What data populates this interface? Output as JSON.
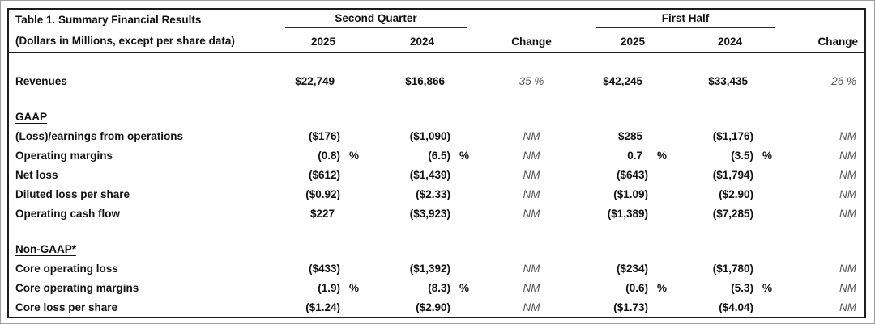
{
  "header": {
    "title": "Table 1. Summary Financial Results",
    "subtitle": "(Dollars in Millions, except per share data)",
    "group_q2": "Second Quarter",
    "group_fh": "First Half",
    "year_2025": "2025",
    "year_2024": "2024",
    "change": "Change"
  },
  "rows": [
    {
      "type": "spacer"
    },
    {
      "type": "data",
      "label": "Revenues",
      "q2_2025": "$22,749",
      "q2_2025_pct": "",
      "q2_2024": "$16,866",
      "q2_2024_pct": "",
      "q2_change": "35 %",
      "fh_2025": "$42,245",
      "fh_2025_pct": "",
      "fh_2024": "$33,435",
      "fh_2024_pct": "",
      "fh_change": "26 %"
    },
    {
      "type": "spacer"
    },
    {
      "type": "section",
      "label": "GAAP"
    },
    {
      "type": "data",
      "label": "(Loss)/earnings from operations",
      "q2_2025": "($176)",
      "q2_2025_pct": "",
      "q2_2024": "($1,090)",
      "q2_2024_pct": "",
      "q2_change": "NM",
      "fh_2025": "$285",
      "fh_2025_pct": "",
      "fh_2024": "($1,176)",
      "fh_2024_pct": "",
      "fh_change": "NM"
    },
    {
      "type": "data",
      "label": "Operating margins",
      "q2_2025": "(0.8)",
      "q2_2025_pct": "%",
      "q2_2024": "(6.5)",
      "q2_2024_pct": "%",
      "q2_change": "NM",
      "fh_2025": "0.7",
      "fh_2025_pct": "%",
      "fh_2024": "(3.5)",
      "fh_2024_pct": "%",
      "fh_change": "NM"
    },
    {
      "type": "data",
      "label": "Net loss",
      "q2_2025": "($612)",
      "q2_2025_pct": "",
      "q2_2024": "($1,439)",
      "q2_2024_pct": "",
      "q2_change": "NM",
      "fh_2025": "($643)",
      "fh_2025_pct": "",
      "fh_2024": "($1,794)",
      "fh_2024_pct": "",
      "fh_change": "NM"
    },
    {
      "type": "data",
      "label": "Diluted loss per share",
      "q2_2025": "($0.92)",
      "q2_2025_pct": "",
      "q2_2024": "($2.33)",
      "q2_2024_pct": "",
      "q2_change": "NM",
      "fh_2025": "($1.09)",
      "fh_2025_pct": "",
      "fh_2024": "($2.90)",
      "fh_2024_pct": "",
      "fh_change": "NM"
    },
    {
      "type": "data",
      "label": "Operating cash flow",
      "q2_2025": "$227",
      "q2_2025_pct": "",
      "q2_2024": "($3,923)",
      "q2_2024_pct": "",
      "q2_change": "NM",
      "fh_2025": "($1,389)",
      "fh_2025_pct": "",
      "fh_2024": "($7,285)",
      "fh_2024_pct": "",
      "fh_change": "NM"
    },
    {
      "type": "spacer"
    },
    {
      "type": "section",
      "label": "Non-GAAP*"
    },
    {
      "type": "data",
      "label": "Core operating loss",
      "q2_2025": "($433)",
      "q2_2025_pct": "",
      "q2_2024": "($1,392)",
      "q2_2024_pct": "",
      "q2_change": "NM",
      "fh_2025": "($234)",
      "fh_2025_pct": "",
      "fh_2024": "($1,780)",
      "fh_2024_pct": "",
      "fh_change": "NM"
    },
    {
      "type": "data",
      "label": "Core operating margins",
      "q2_2025": "(1.9)",
      "q2_2025_pct": "%",
      "q2_2024": "(8.3)",
      "q2_2024_pct": "%",
      "q2_change": "NM",
      "fh_2025": "(0.6)",
      "fh_2025_pct": "%",
      "fh_2024": "(5.3)",
      "fh_2024_pct": "%",
      "fh_change": "NM"
    },
    {
      "type": "data",
      "label": "Core loss per share",
      "q2_2025": "($1.24)",
      "q2_2025_pct": "",
      "q2_2024": "($2.90)",
      "q2_2024_pct": "",
      "q2_change": "NM",
      "fh_2025": "($1.73)",
      "fh_2025_pct": "",
      "fh_2024": "($4.04)",
      "fh_2024_pct": "",
      "fh_change": "NM"
    }
  ],
  "colors": {
    "text": "#111111",
    "change_text": "#55565a",
    "border": "#1d1d1d",
    "frame_border": "#9c9c9c"
  }
}
